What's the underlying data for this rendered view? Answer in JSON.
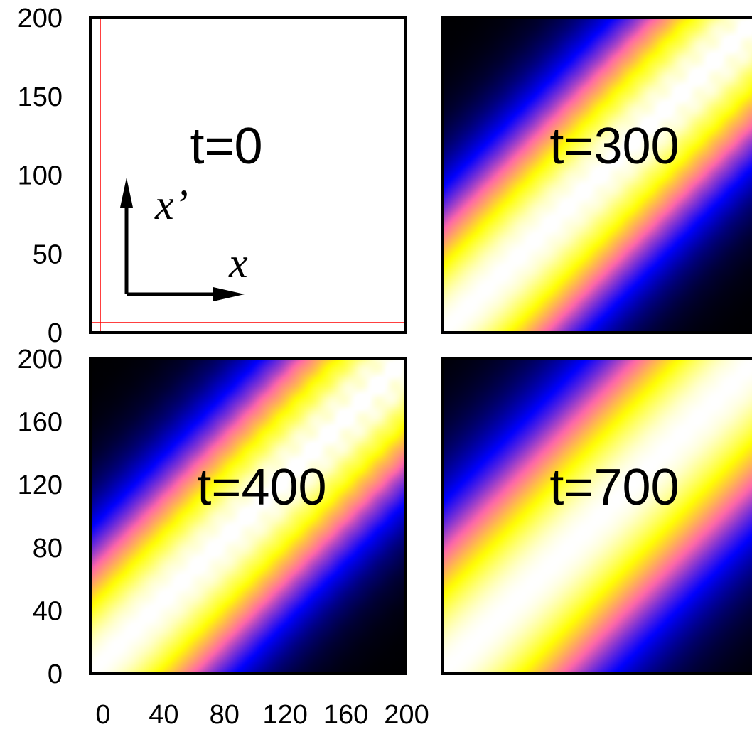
{
  "chart_data": {
    "type": "heatmap",
    "colormap": [
      "#000000",
      "#0000ff",
      "#ff66aa",
      "#ffff00",
      "#ffffff"
    ],
    "panels": [
      {
        "label": "t=0",
        "time": 0,
        "heatmap": false,
        "yticks": [
          "0",
          "50",
          "100",
          "150",
          "200"
        ],
        "ylim": [
          0,
          200
        ],
        "inset": {
          "arrow_x_label": "x",
          "arrow_y_label": "x’"
        }
      },
      {
        "label": "t=300",
        "time": 300,
        "heatmap": true,
        "band_width": 0.28,
        "corner": "blue",
        "ripple": 0.35
      },
      {
        "label": "t=400",
        "time": 400,
        "heatmap": true,
        "band_width": 0.28,
        "corner": "blue",
        "ripple": 0.45,
        "yticks": [
          "0",
          "40",
          "80",
          "120",
          "160",
          "200"
        ],
        "ylim": [
          0,
          200
        ]
      },
      {
        "label": "t=700",
        "time": 700,
        "heatmap": true,
        "band_width": 0.33,
        "corner": "blue",
        "ripple": 0.05
      }
    ],
    "xticks": [
      "0",
      "40",
      "80",
      "120",
      "160",
      "200"
    ],
    "xlim": [
      0,
      200
    ]
  }
}
